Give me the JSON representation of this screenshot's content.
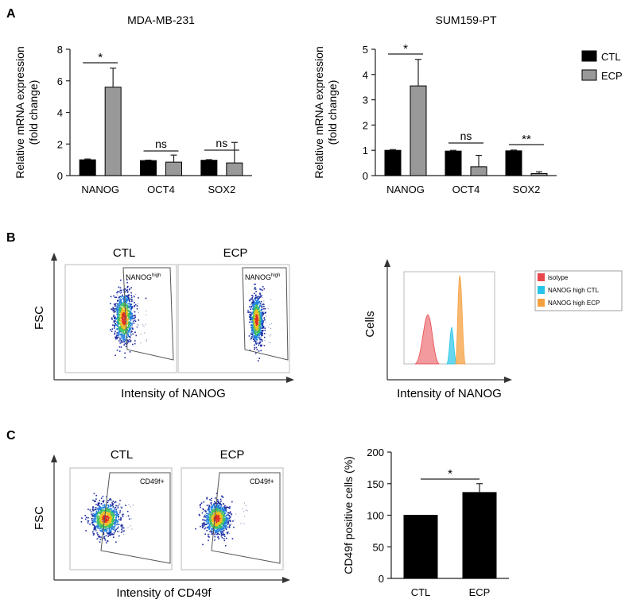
{
  "panel_labels": {
    "a": "A",
    "b": "B",
    "c": "C"
  },
  "legend_a": {
    "ctl": "CTL",
    "ecp": "ECP"
  },
  "colors": {
    "ctl": "#000000",
    "ecp": "#999999",
    "isotope": "#e8474c",
    "nanog_ctl": "#26c4e8",
    "nanog_ecp": "#f5a040"
  },
  "panel_b": {
    "col_ctl": "CTL",
    "col_ecp": "ECP",
    "ylabel": "FSC",
    "xlabel": "Intensity of NANOG",
    "gate_label": "NANOG",
    "gate_sup": "high",
    "hist_ylabel": "Cells",
    "hist_xlabel": "Intensity of NANOG",
    "hist_legend": [
      "isotype",
      "NANOG high CTL",
      "NANOG high ECP"
    ]
  },
  "panel_c": {
    "col_ctl": "CTL",
    "col_ecp": "ECP",
    "ylabel": "FSC",
    "xlabel": "Intensity of CD49f",
    "gate_label": "CD49f+"
  },
  "chart_data": [
    {
      "type": "bar",
      "title": "MDA-MB-231",
      "ylabel": "Relative mRNA expression\n(fold change)",
      "ylim": [
        0,
        8
      ],
      "yticks": [
        0,
        2,
        4,
        6,
        8
      ],
      "categories": [
        "NANOG",
        "OCT4",
        "SOX2"
      ],
      "series": [
        {
          "name": "CTL",
          "values": [
            1.0,
            0.95,
            0.97
          ],
          "errors": [
            0.05,
            0.03,
            0.04
          ]
        },
        {
          "name": "ECP",
          "values": [
            5.6,
            0.85,
            0.8
          ],
          "errors": [
            1.2,
            0.45,
            1.3
          ]
        }
      ],
      "significance": [
        "*",
        "ns",
        "ns"
      ]
    },
    {
      "type": "bar",
      "title": "SUM159-PT",
      "ylabel": "Relative mRNA expression\n(fold change)",
      "ylim": [
        0,
        5
      ],
      "yticks": [
        0,
        1,
        2,
        3,
        4,
        5
      ],
      "categories": [
        "NANOG",
        "OCT4",
        "SOX2"
      ],
      "series": [
        {
          "name": "CTL",
          "values": [
            1.0,
            0.97,
            0.98
          ],
          "errors": [
            0.03,
            0.03,
            0.03
          ]
        },
        {
          "name": "ECP",
          "values": [
            3.55,
            0.35,
            0.08
          ],
          "errors": [
            1.05,
            0.45,
            0.07
          ]
        }
      ],
      "significance": [
        "*",
        "ns",
        "**"
      ]
    },
    {
      "type": "bar",
      "title": "",
      "ylabel": "CD49f positive cells (%)",
      "ylim": [
        0,
        200
      ],
      "yticks": [
        0,
        50,
        100,
        150,
        200
      ],
      "categories": [
        "CTL",
        "ECP"
      ],
      "series": [
        {
          "name": "",
          "values": [
            100,
            136
          ],
          "errors": [
            0,
            14
          ]
        }
      ],
      "significance": [
        "*"
      ]
    }
  ]
}
